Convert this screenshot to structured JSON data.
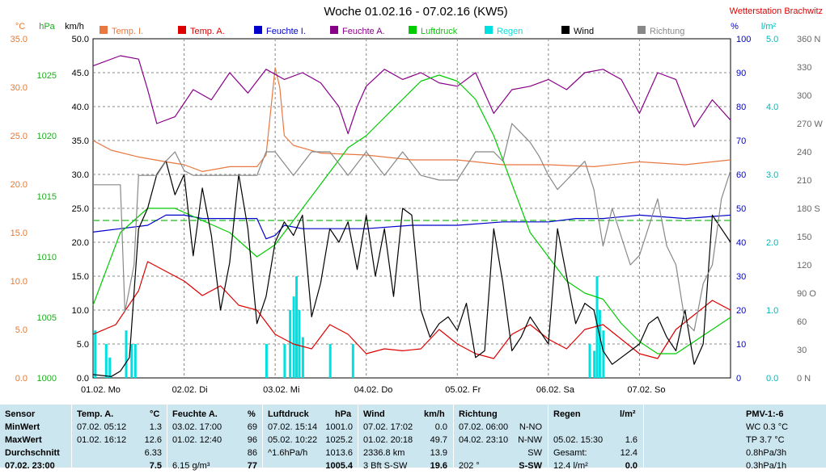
{
  "chart_data": {
    "type": "line",
    "title": "Woche 01.02.16 - 07.02.16 (KW5)",
    "station": "Wetterstation Brachwitz",
    "x_days": [
      "01.02.  Mo",
      "02.02.  Di",
      "03.02.  Mi",
      "04.02.  Do",
      "05.02.  Fr",
      "06.02.  Sa",
      "07.02.  So"
    ],
    "xlim": [
      0,
      7
    ],
    "axes": {
      "temp": {
        "unit": "°C",
        "min": 0,
        "max": 35,
        "ticks": [
          "35.0",
          "30.0",
          "25.0",
          "20.0",
          "15.0",
          "10.0",
          "5.0",
          "0.0"
        ],
        "color": "#e87830"
      },
      "press": {
        "unit": "hPa",
        "min": 1000,
        "max": 1028,
        "ticks": [
          "1025",
          "1020",
          "1015",
          "1010",
          "1005",
          "1000"
        ],
        "color": "#22aa22"
      },
      "wind": {
        "unit": "km/h",
        "min": 0,
        "max": 50,
        "ticks": [
          "50.0",
          "45.0",
          "40.0",
          "35.0",
          "30.0",
          "25.0",
          "20.0",
          "15.0",
          "10.0",
          "5.0",
          "0.0"
        ],
        "color": "#000000"
      },
      "hum": {
        "unit": "%",
        "min": 0,
        "max": 100,
        "ticks": [
          "100",
          "90",
          "80",
          "70",
          "60",
          "50",
          "40",
          "30",
          "20",
          "10",
          "0"
        ],
        "color": "#0000cc"
      },
      "rain": {
        "unit": "l/m²",
        "min": 0,
        "max": 5,
        "ticks": [
          "5.0",
          "4.0",
          "3.0",
          "2.0",
          "1.0",
          "0.0"
        ],
        "color": "#00cccc"
      },
      "dir": {
        "unit": "",
        "min": 0,
        "max": 360,
        "ticks": [
          "360 N",
          "330",
          "300",
          "270 W",
          "240",
          "210",
          "180 S",
          "150",
          "120",
          "90 O",
          "60",
          "30",
          "0   N"
        ],
        "color": "#666666"
      }
    },
    "legend": [
      {
        "name": "Temp. I.",
        "color": "#e87840"
      },
      {
        "name": "Temp. A.",
        "color": "#dd0000"
      },
      {
        "name": "Feuchte I.",
        "color": "#0000cc"
      },
      {
        "name": "Feuchte A.",
        "color": "#880088"
      },
      {
        "name": "Luftdruck",
        "color": "#00cc00"
      },
      {
        "name": "Regen",
        "color": "#00e0e0"
      },
      {
        "name": "Wind",
        "color": "#000000"
      },
      {
        "name": "Richtung",
        "color": "#888888"
      }
    ],
    "grid": true,
    "pressure_reference": 1013.0,
    "series": [
      {
        "name": "Temp. I.",
        "axis": "temp",
        "color": "#e87840",
        "x": [
          0,
          0.2,
          0.5,
          0.8,
          1.0,
          1.2,
          1.5,
          1.8,
          1.9,
          2.0,
          2.05,
          2.1,
          2.2,
          2.5,
          3.0,
          3.5,
          4.0,
          4.5,
          5.0,
          5.5,
          6.0,
          6.5,
          7.0
        ],
        "y": [
          24.5,
          23.5,
          22.8,
          22.3,
          22.0,
          21.3,
          21.8,
          21.8,
          23.0,
          32.0,
          30.0,
          25.0,
          24.0,
          23.2,
          23.0,
          22.5,
          22.5,
          22.0,
          22.0,
          21.8,
          22.3,
          22.0,
          22.5
        ]
      },
      {
        "name": "Temp. A.",
        "axis": "temp",
        "color": "#dd0000",
        "x": [
          0,
          0.25,
          0.5,
          0.6,
          0.8,
          1.0,
          1.2,
          1.4,
          1.6,
          1.8,
          2.0,
          2.2,
          2.4,
          2.6,
          2.8,
          3.0,
          3.2,
          3.4,
          3.6,
          3.8,
          4.0,
          4.2,
          4.4,
          4.6,
          4.8,
          5.0,
          5.2,
          5.4,
          5.6,
          5.8,
          6.0,
          6.2,
          6.4,
          6.6,
          6.8,
          7.0
        ],
        "y": [
          4.5,
          5.5,
          9.0,
          12.0,
          11.0,
          10.0,
          8.5,
          9.5,
          7.5,
          7.0,
          4.5,
          3.5,
          3.0,
          5.5,
          4.5,
          2.5,
          3.0,
          2.8,
          3.0,
          5.0,
          3.5,
          2.5,
          2.0,
          4.5,
          5.5,
          4.0,
          3.0,
          5.0,
          5.5,
          4.0,
          2.5,
          2.0,
          5.0,
          6.5,
          8.0,
          7.0
        ]
      },
      {
        "name": "Feuchte I.",
        "axis": "hum",
        "color": "#0000cc",
        "x": [
          0,
          0.3,
          0.6,
          0.8,
          1.0,
          1.2,
          1.5,
          1.8,
          1.9,
          2.0,
          2.1,
          2.3,
          2.6,
          3.0,
          3.5,
          4.0,
          4.5,
          5.0,
          5.3,
          5.6,
          6.0,
          6.5,
          7.0
        ],
        "y": [
          43,
          44,
          45,
          48,
          48,
          47,
          47,
          47,
          41,
          42,
          45,
          44,
          44,
          44,
          45,
          45,
          46,
          46,
          47,
          47,
          48,
          47,
          48
        ]
      },
      {
        "name": "Feuchte A.",
        "axis": "hum",
        "color": "#880088",
        "x": [
          0,
          0.3,
          0.5,
          0.6,
          0.7,
          0.9,
          1.1,
          1.3,
          1.5,
          1.7,
          1.9,
          2.1,
          2.3,
          2.5,
          2.7,
          2.8,
          2.9,
          3.0,
          3.2,
          3.4,
          3.6,
          3.8,
          4.0,
          4.2,
          4.4,
          4.6,
          4.8,
          5.0,
          5.2,
          5.4,
          5.6,
          5.8,
          6.0,
          6.2,
          6.4,
          6.6,
          6.8,
          7.0
        ],
        "y": [
          92,
          95,
          94,
          85,
          75,
          77,
          85,
          82,
          90,
          84,
          91,
          88,
          90,
          87,
          80,
          72,
          80,
          86,
          91,
          88,
          90,
          87,
          86,
          90,
          78,
          85,
          86,
          88,
          85,
          90,
          91,
          88,
          78,
          90,
          88,
          74,
          82,
          76
        ]
      },
      {
        "name": "Luftdruck",
        "axis": "press",
        "color": "#00cc00",
        "x": [
          0,
          0.3,
          0.6,
          0.9,
          1.2,
          1.5,
          1.8,
          2.0,
          2.2,
          2.4,
          2.6,
          2.8,
          3.0,
          3.2,
          3.4,
          3.6,
          3.8,
          4.0,
          4.2,
          4.4,
          4.5,
          4.6,
          4.7,
          4.8,
          5.0,
          5.2,
          5.4,
          5.6,
          5.8,
          6.0,
          6.2,
          6.4,
          6.6,
          6.8,
          7.0
        ],
        "y": [
          1006,
          1012,
          1014,
          1014,
          1013,
          1012,
          1010,
          1011,
          1013,
          1015,
          1017,
          1019,
          1020,
          1021.5,
          1023,
          1024.5,
          1025,
          1024.5,
          1023,
          1020,
          1018,
          1016,
          1014,
          1012,
          1010,
          1008,
          1007,
          1006.5,
          1004.5,
          1003,
          1002,
          1002,
          1003,
          1004,
          1005
        ]
      },
      {
        "name": "Wind",
        "axis": "wind",
        "color": "#000000",
        "x": [
          0,
          0.2,
          0.3,
          0.4,
          0.5,
          0.6,
          0.7,
          0.8,
          0.9,
          1.0,
          1.1,
          1.2,
          1.3,
          1.4,
          1.5,
          1.6,
          1.7,
          1.8,
          1.9,
          2.0,
          2.1,
          2.2,
          2.3,
          2.4,
          2.5,
          2.6,
          2.7,
          2.8,
          2.9,
          3.0,
          3.1,
          3.2,
          3.3,
          3.4,
          3.5,
          3.6,
          3.7,
          3.8,
          3.9,
          4.0,
          4.1,
          4.2,
          4.3,
          4.4,
          4.5,
          4.6,
          4.7,
          4.8,
          4.9,
          5.0,
          5.1,
          5.2,
          5.3,
          5.4,
          5.5,
          5.6,
          5.7,
          5.8,
          5.9,
          6.0,
          6.1,
          6.2,
          6.3,
          6.4,
          6.5,
          6.6,
          6.7,
          6.8,
          6.9,
          7.0
        ],
        "y": [
          0.5,
          0.2,
          1.0,
          3.0,
          22.0,
          25.0,
          30.0,
          32.0,
          27.0,
          30.0,
          18.0,
          28.0,
          21.0,
          10.0,
          17.0,
          30.0,
          22.0,
          8.0,
          12.0,
          20.0,
          23.0,
          21.0,
          24.0,
          9.0,
          14.0,
          22.0,
          20.0,
          23.0,
          16.0,
          24.0,
          15.0,
          22.0,
          12.0,
          25.0,
          24.0,
          10.0,
          6.0,
          8.0,
          9.0,
          7.0,
          11.0,
          3.0,
          4.0,
          22.0,
          14.0,
          4.0,
          6.0,
          9.0,
          7.0,
          5.0,
          22.0,
          15.0,
          8.0,
          11.0,
          10.0,
          4.0,
          2.0,
          3.0,
          4.0,
          5.0,
          8.0,
          9.0,
          6.0,
          4.0,
          10.0,
          2.0,
          5.0,
          24.0,
          22.0,
          20.0
        ]
      },
      {
        "name": "Richtung",
        "axis": "dir",
        "color": "#888888",
        "x": [
          0,
          0.3,
          0.35,
          0.45,
          0.5,
          0.6,
          0.7,
          0.8,
          0.9,
          1.0,
          1.1,
          1.2,
          1.3,
          1.5,
          1.7,
          1.8,
          1.9,
          2.0,
          2.2,
          2.4,
          2.6,
          2.8,
          3.0,
          3.2,
          3.4,
          3.6,
          3.8,
          4.0,
          4.2,
          4.4,
          4.5,
          4.6,
          4.7,
          4.8,
          4.9,
          5.0,
          5.1,
          5.2,
          5.3,
          5.4,
          5.5,
          5.6,
          5.7,
          5.8,
          5.9,
          6.0,
          6.1,
          6.2,
          6.3,
          6.4,
          6.5,
          6.6,
          6.7,
          6.8,
          6.9,
          7.0
        ],
        "y": [
          205,
          205,
          70,
          120,
          215,
          215,
          215,
          230,
          240,
          220,
          215,
          215,
          215,
          215,
          215,
          215,
          240,
          240,
          215,
          240,
          240,
          215,
          240,
          215,
          240,
          215,
          210,
          210,
          240,
          240,
          230,
          270,
          260,
          250,
          235,
          215,
          200,
          210,
          220,
          230,
          200,
          140,
          180,
          150,
          120,
          130,
          160,
          190,
          140,
          120,
          60,
          50,
          100,
          120,
          190,
          220
        ]
      }
    ],
    "rain_bars": {
      "axis": "rain",
      "color": "#00e0e0",
      "x": [
        0.02,
        0.14,
        0.18,
        0.36,
        0.42,
        0.46,
        1.9,
        2.1,
        2.16,
        2.2,
        2.23,
        2.26,
        2.3,
        2.6,
        2.85,
        5.45,
        5.5,
        5.53,
        5.56,
        5.6
      ],
      "y": [
        0.7,
        0.5,
        0.3,
        0.7,
        0.5,
        0.5,
        0.5,
        0.5,
        1.0,
        1.2,
        1.5,
        1.0,
        0.6,
        0.5,
        0.5,
        0.5,
        0.4,
        1.5,
        1.0,
        0.7
      ]
    }
  },
  "table": {
    "headers": {
      "sensor": "Sensor",
      "temp": "Temp. A.",
      "temp_unit": "°C",
      "hum": "Feuchte A.",
      "hum_unit": "%",
      "press": "Luftdruck",
      "press_unit": "hPa",
      "wind": "Wind",
      "wind_unit": "km/h",
      "dir": "Richtung",
      "rain": "Regen",
      "rain_unit": "l/m²",
      "pmv": "PMV-1:-6"
    },
    "rows": [
      {
        "label": "MinWert",
        "temp_time": "07.02.  05:12",
        "temp_val": "1.3",
        "hum_time": "03.02.  17:00",
        "hum_val": "69",
        "press_time": "07.02.  15:14",
        "press_val": "1001.0",
        "wind_time": "07.02.  17:02",
        "wind_val": "0.0",
        "dir_time": "07.02.  06:00",
        "dir_val": "N-NO",
        "rain_time": "",
        "rain_val": "",
        "pmv": "WC 0.3 °C"
      },
      {
        "label": "MaxWert",
        "temp_time": "01.02.  16:12",
        "temp_val": "12.6",
        "hum_time": "01.02.  12:40",
        "hum_val": "96",
        "press_time": "05.02.  10:22",
        "press_val": "1025.2",
        "wind_time": "01.02.  20:18",
        "wind_val": "49.7",
        "dir_time": "04.02.  23:10",
        "dir_val": "N-NW",
        "rain_time": "05.02.  15:30",
        "rain_val": "1.6",
        "pmv": "TP 3.7 °C"
      },
      {
        "label": "Durchschnitt",
        "temp_time": "",
        "temp_val": "6.33",
        "hum_time": "",
        "hum_val": "86",
        "press_time": "^1.6hPa/h",
        "press_val": "1013.6",
        "wind_time": "2336.8 km",
        "wind_val": "13.9",
        "dir_time": "",
        "dir_val": "SW",
        "rain_time": "Gesamt:",
        "rain_val": "12.4",
        "pmv": "0.8hPa/3h"
      },
      {
        "label": "07.02.  23:00",
        "temp_time": "",
        "temp_val": "7.5",
        "hum_time": "6.15 g/m³",
        "hum_val": "77",
        "press_time": "",
        "press_val": "1005.4",
        "wind_time": "3 Bft S-SW",
        "wind_val": "19.6",
        "dir_time": "202 °",
        "dir_val": "S-SW",
        "rain_time": "12.4 l/m²",
        "rain_val": "0.0",
        "pmv": "0.3hPa/1h"
      }
    ]
  }
}
